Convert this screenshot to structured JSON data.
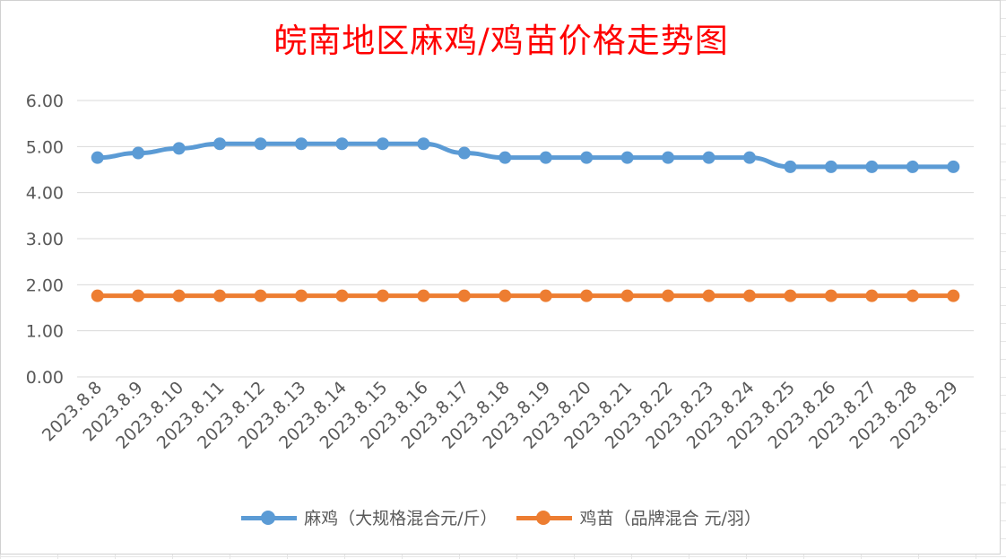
{
  "chart_data": {
    "type": "line",
    "title": "皖南地区麻鸡/鸡苗价格走势图",
    "categories": [
      "2023.8.8",
      "2023.8.9",
      "2023.8.10",
      "2023.8.11",
      "2023.8.12",
      "2023.8.13",
      "2023.8.14",
      "2023.8.15",
      "2023.8.16",
      "2023.8.17",
      "2023.8.18",
      "2023.8.19",
      "2023.8.20",
      "2023.8.21",
      "2023.8.22",
      "2023.8.23",
      "2023.8.24",
      "2023.8.25",
      "2023.8.26",
      "2023.8.27",
      "2023.8.28",
      "2023.8.29"
    ],
    "series": [
      {
        "name": "麻鸡（大规格混合元/斤）",
        "color": "#5b9bd5",
        "values": [
          4.76,
          4.86,
          4.96,
          5.06,
          5.06,
          5.06,
          5.06,
          5.06,
          5.06,
          4.86,
          4.76,
          4.76,
          4.76,
          4.76,
          4.76,
          4.76,
          4.76,
          4.56,
          4.56,
          4.56,
          4.56,
          4.56
        ]
      },
      {
        "name": "鸡苗（品牌混合 元/羽）",
        "color": "#ed7d31",
        "values": [
          1.76,
          1.76,
          1.76,
          1.76,
          1.76,
          1.76,
          1.76,
          1.76,
          1.76,
          1.76,
          1.76,
          1.76,
          1.76,
          1.76,
          1.76,
          1.76,
          1.76,
          1.76,
          1.76,
          1.76,
          1.76,
          1.76
        ]
      }
    ],
    "ylim": [
      0,
      6
    ],
    "yticks": [
      "0.00",
      "1.00",
      "2.00",
      "3.00",
      "4.00",
      "5.00",
      "6.00"
    ],
    "xlabel": "",
    "ylabel": "",
    "grid": true,
    "legend_position": "bottom"
  }
}
